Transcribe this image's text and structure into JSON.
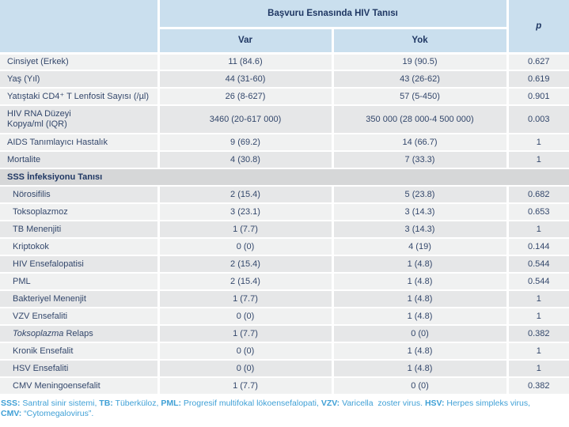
{
  "colors": {
    "header_bg": "#cadfee",
    "row_light": "#f0f1f1",
    "row_dark": "#e6e7e8",
    "section_bg": "#d6d7d8",
    "heading_text": "#1f3763",
    "body_text": "#33476b",
    "footnote_text": "#3fa0d6"
  },
  "table": {
    "header": {
      "group_title": "Başvuru Esnasında HIV Tanısı",
      "col_var": "Var",
      "col_yok": "Yok",
      "col_p": "p"
    },
    "rows": [
      {
        "label": "Cinsiyet (Erkek)",
        "var": "11 (84.6)",
        "yok": "19 (90.5)",
        "p": "0.627"
      },
      {
        "label": "Yaş (Yıl)",
        "var": "44 (31-60)",
        "yok": "43 (26-62)",
        "p": "0.619"
      },
      {
        "label": "Yatıştaki CD4⁺ T Lenfosit Sayısı (/µl)",
        "var": "26 (8-627)",
        "yok": "57 (5-450)",
        "p": "0.901"
      },
      {
        "label": "HIV RNA Düzeyi\nKopya/ml (IQR)",
        "var": "3460 (20-617 000)",
        "yok": "350 000 (28 000-4 500 000)",
        "p": "0.003",
        "tall": true
      },
      {
        "label": "AIDS Tanımlayıcı Hastalık",
        "var": "9 (69.2)",
        "yok": "14 (66.7)",
        "p": "1"
      },
      {
        "label": "Mortalite",
        "var": "4 (30.8)",
        "yok": "7 (33.3)",
        "p": "1"
      },
      {
        "label": "SSS İnfeksiyonu Tanısı",
        "section": true
      },
      {
        "label": "Nörosifilis",
        "var": "2 (15.4)",
        "yok": "5 (23.8)",
        "p": "0.682",
        "indent": true
      },
      {
        "label": "Toksoplazmoz",
        "var": "3 (23.1)",
        "yok": "3 (14.3)",
        "p": "0.653",
        "indent": true
      },
      {
        "label": "TB Menenjiti",
        "var": "1 (7.7)",
        "yok": "3 (14.3)",
        "p": "1",
        "indent": true
      },
      {
        "label": "Kriptokok",
        "var": "0 (0)",
        "yok": "4 (19)",
        "p": "0.144",
        "indent": true
      },
      {
        "label": "HIV Ensefalopatisi",
        "var": "2 (15.4)",
        "yok": "1 (4.8)",
        "p": "0.544",
        "indent": true
      },
      {
        "label": "PML",
        "var": "2 (15.4)",
        "yok": "1 (4.8)",
        "p": "0.544",
        "indent": true
      },
      {
        "label": "Bakteriyel Menenjit",
        "var": "1 (7.7)",
        "yok": "1 (4.8)",
        "p": "1",
        "indent": true
      },
      {
        "label": "VZV Ensefaliti",
        "var": "0 (0)",
        "yok": "1 (4.8)",
        "p": "1",
        "indent": true
      },
      {
        "label_italic": "Toksoplazma",
        "label": " Relaps",
        "var": "1 (7.7)",
        "yok": "0 (0)",
        "p": "0.382",
        "indent": true
      },
      {
        "label": "Kronik Ensefalit",
        "var": "0 (0)",
        "yok": "1 (4.8)",
        "p": "1",
        "indent": true
      },
      {
        "label": "HSV Ensefaliti",
        "var": "0 (0)",
        "yok": "1 (4.8)",
        "p": "1",
        "indent": true
      },
      {
        "label": "CMV Meningoensefalit",
        "var": "1 (7.7)",
        "yok": "0 (0)",
        "p": "0.382",
        "indent": true
      }
    ],
    "footnotes": [
      [
        {
          "b": "SSS:",
          "t": " Santral sinir sistemi, "
        },
        {
          "b": "TB:",
          "t": " Tüberküloz, "
        },
        {
          "b": "PML:",
          "t": " Progresif multifokal lökoensefalopati, "
        },
        {
          "b": "VZV:",
          "t": " Varicella  zoster virus. "
        },
        {
          "b": "HSV:",
          "t": " Herpes simpleks virus,"
        }
      ],
      [
        {
          "b": "CMV:",
          "t": " “Cytomegalovirus”."
        }
      ]
    ]
  }
}
